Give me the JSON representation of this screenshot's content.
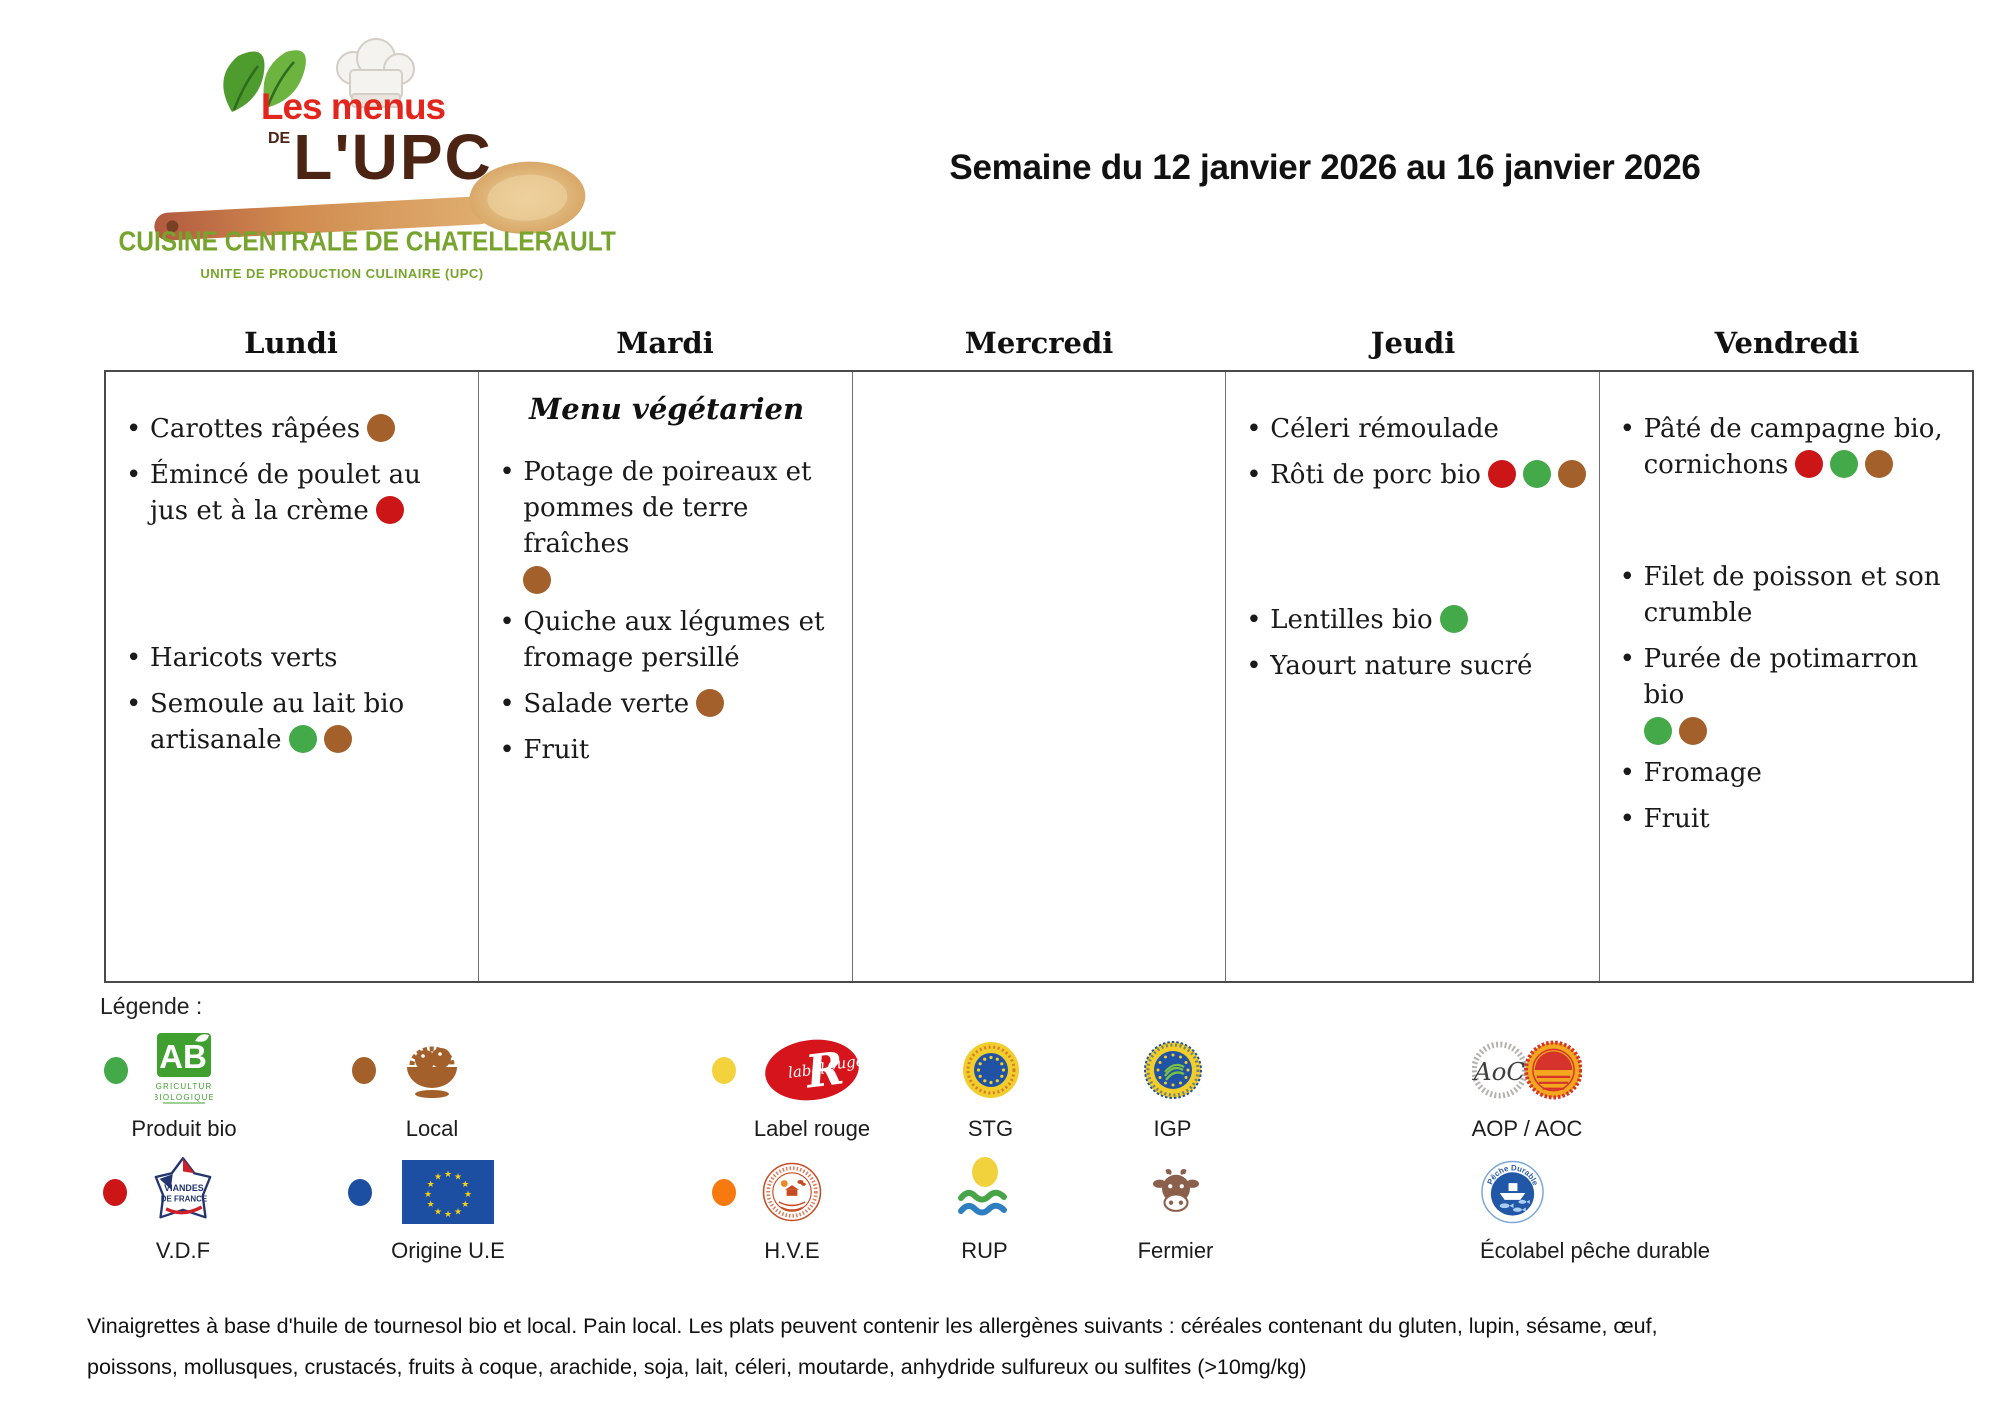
{
  "header": {
    "week_title": "Semaine du 12 janvier 2026 au 16 janvier 2026"
  },
  "logo": {
    "title_line1": "Les menus",
    "title_line2": "DE",
    "title_line3": "L'UPC",
    "org_name": "CUISINE CENTRALE DE CHATELLERAULT",
    "org_subtitle": "UNITE DE PRODUCTION CULINAIRE (UPC)"
  },
  "dot_colors": {
    "bio": "#44a948",
    "local": "#a3602b",
    "vdf": "#cc1517",
    "label_rouge": "#f4d23e",
    "ue": "#1c4fa1",
    "hve": "#f8790f"
  },
  "week": {
    "days": [
      {
        "name": "Lundi",
        "items": [
          {
            "text": "Carottes râpées",
            "dots": [
              "local"
            ]
          },
          {
            "text": "Émincé de poulet au jus et à la crème",
            "dots": [
              "vdf"
            ]
          },
          {
            "text": "Haricots verts",
            "dots": [],
            "gap": 111
          },
          {
            "text": "Semoule au lait bio artisanale",
            "dots": [
              "bio",
              "local"
            ]
          }
        ]
      },
      {
        "name": "Mardi",
        "subtitle": "Menu végétarien",
        "items": [
          {
            "text": "Potage de poireaux et pommes de terre fraîches",
            "dots": [
              "local"
            ],
            "dots_block": true
          },
          {
            "text": "Quiche aux légumes et fromage persillé",
            "dots": []
          },
          {
            "text": "Salade verte",
            "dots": [
              "local"
            ]
          },
          {
            "text": "Fruit",
            "dots": []
          }
        ]
      },
      {
        "name": "Mercredi",
        "items": []
      },
      {
        "name": "Jeudi",
        "items": [
          {
            "text": "Céleri rémoulade",
            "dots": []
          },
          {
            "text": "Rôti de porc bio",
            "dots": [
              "vdf",
              "bio",
              "local"
            ]
          },
          {
            "text": "Lentilles bio",
            "dots": [
              "bio"
            ],
            "gap": 109
          },
          {
            "text": "Yaourt nature sucré",
            "dots": []
          }
        ]
      },
      {
        "name": "Vendredi",
        "items": [
          {
            "text": "Pâté de campagne bio, cornichons",
            "dots": [
              "vdf",
              "bio",
              "local"
            ]
          },
          {
            "text": "Filet de poisson et son crumble",
            "dots": [],
            "gap": 76
          },
          {
            "text": "Purée de potimarron bio",
            "dots": [
              "bio",
              "local"
            ],
            "dots_block": true
          },
          {
            "text": "Fromage",
            "dots": []
          },
          {
            "text": "Fruit",
            "dots": []
          }
        ]
      }
    ]
  },
  "legend": {
    "title": "Légende :",
    "rows": [
      [
        {
          "dot": "bio",
          "icon": "ab-logo",
          "label": "Produit bio"
        },
        {
          "dot": "local",
          "icon": "basket",
          "label": "Local"
        },
        {
          "dot": "label_rouge",
          "icon": "label-rouge",
          "label": "Label rouge"
        },
        {
          "icon": "stg",
          "label": "STG"
        },
        {
          "icon": "igp",
          "label": "IGP"
        },
        {
          "icon": "aoc-aop",
          "label": "AOP / AOC"
        }
      ],
      [
        {
          "dot": "vdf",
          "icon": "vdf",
          "label": "V.D.F"
        },
        {
          "dot": "ue",
          "icon": "eu-flag",
          "label": "Origine U.E"
        },
        {
          "dot": "hve",
          "icon": "hve",
          "label": "H.V.E"
        },
        {
          "icon": "rup",
          "label": "RUP"
        },
        {
          "icon": "fermier",
          "label": "Fermier"
        },
        {
          "icon": "peche-durable",
          "label": "Écolabel pêche durable",
          "label_align": "left"
        }
      ]
    ]
  },
  "footer": {
    "text": "Vinaigrettes à base d'huile de tournesol bio et local. Pain local. Les plats peuvent contenir les allergènes suivants : céréales contenant du gluten, lupin, sésame, œuf, poissons, mollusques, crustacés, fruits à coque, arachide, soja, lait, céleri, moutarde, anhydride sulfureux ou sulfites (>10mg/kg)"
  }
}
